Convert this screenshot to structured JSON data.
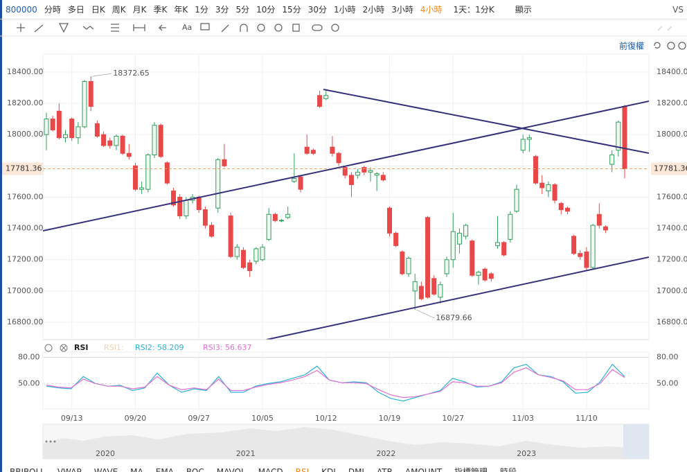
{
  "toolbar": {
    "symbol": "800000",
    "timeframes": [
      "分時",
      "多日",
      "日K",
      "周K",
      "月K",
      "季K",
      "年K",
      "1分",
      "3分",
      "5分",
      "10分",
      "15分",
      "30分",
      "1小時",
      "2小時",
      "3小時",
      "4小時"
    ],
    "active": "4小時",
    "period": "1天：1分K",
    "display": "顯示",
    "compare": "VS"
  },
  "toolbar2": {
    "text_tool": "Aa"
  },
  "adjust": "前復權",
  "chart_data": [
    {
      "type": "candlestick",
      "ylim": [
        16689,
        18515
      ],
      "yticks": [
        {
          "value": 16800,
          "label": "16800.00"
        },
        {
          "value": 17000,
          "label": "17000.00"
        },
        {
          "value": 17200,
          "label": "17200.00"
        },
        {
          "value": 17400,
          "label": "17400.00"
        },
        {
          "value": 17600,
          "label": "17600.00"
        },
        {
          "value": 17800,
          "label": "17800.00"
        },
        {
          "value": 18000,
          "label": "18000.00"
        },
        {
          "value": 18200,
          "label": "18200.00"
        },
        {
          "value": 18400,
          "label": "18400.00"
        }
      ],
      "categories": [
        null,
        null,
        null,
        null,
        "09/13",
        null,
        null,
        null,
        null,
        null,
        null,
        null,
        null,
        null,
        "09/20",
        null,
        null,
        null,
        null,
        null,
        null,
        null,
        null,
        null,
        "09/27",
        null,
        null,
        null,
        null,
        null,
        null,
        null,
        null,
        null,
        "10/05",
        null,
        null,
        null,
        null,
        null,
        null,
        null,
        null,
        null,
        "10/12",
        null,
        null,
        null,
        null,
        null,
        null,
        null,
        null,
        null,
        "10/19",
        null,
        null,
        null,
        null,
        null,
        null,
        null,
        null,
        null,
        "10/27",
        null,
        null,
        null,
        null,
        null,
        null,
        null,
        null,
        null,
        null,
        "11/03",
        null,
        null,
        null,
        null,
        null,
        null,
        null,
        null,
        null,
        "11/10",
        null,
        null,
        null,
        null,
        null,
        null
      ],
      "ohlc": [
        [
          18000,
          18140,
          17900,
          18100
        ],
        [
          18100,
          18120,
          18020,
          18030
        ],
        [
          18150,
          18200,
          17970,
          17980
        ],
        [
          17980,
          18030,
          17950,
          18000
        ],
        [
          18100,
          18110,
          17960,
          17980
        ],
        [
          17980,
          18080,
          17940,
          18050
        ],
        [
          18050,
          18350,
          18040,
          18340
        ],
        [
          18340,
          18372.65,
          18150,
          18180
        ],
        [
          18070,
          18090,
          17980,
          17990
        ],
        [
          18000,
          18020,
          17920,
          17930
        ],
        [
          17960,
          17980,
          17910,
          17930
        ],
        [
          17930,
          18000,
          17900,
          17990
        ],
        [
          17990,
          18000,
          17870,
          17880
        ],
        [
          17880,
          17940,
          17840,
          17860
        ],
        [
          17800,
          17820,
          17640,
          17650
        ],
        [
          17650,
          17700,
          17620,
          17660
        ],
        [
          17650,
          17880,
          17630,
          17870
        ],
        [
          17870,
          18080,
          17850,
          18060
        ],
        [
          18060,
          18070,
          17850,
          17860
        ],
        [
          17820,
          17830,
          17680,
          17690
        ],
        [
          17640,
          17660,
          17540,
          17550
        ],
        [
          17600,
          17620,
          17460,
          17480
        ],
        [
          17480,
          17600,
          17460,
          17580
        ],
        [
          17580,
          17620,
          17560,
          17600
        ],
        [
          17600,
          17610,
          17500,
          17520
        ],
        [
          17520,
          17540,
          17400,
          17420
        ],
        [
          17420,
          17440,
          17340,
          17350
        ],
        [
          17530,
          17850,
          17500,
          17840
        ],
        [
          17840,
          17940,
          17790,
          17800
        ],
        [
          17480,
          17500,
          17210,
          17220
        ],
        [
          17220,
          17300,
          17200,
          17280
        ],
        [
          17260,
          17280,
          17140,
          17150
        ],
        [
          17180,
          17200,
          17090,
          17130
        ],
        [
          17190,
          17280,
          17170,
          17270
        ],
        [
          17200,
          17300,
          17190,
          17280
        ],
        [
          17330,
          17530,
          17320,
          17490
        ],
        [
          17490,
          17500,
          17440,
          17450
        ],
        [
          17450,
          17460,
          17440,
          17452
        ],
        [
          17470,
          17540,
          17460,
          17490
        ],
        [
          17700,
          17880,
          17690,
          17720
        ],
        [
          17730,
          17740,
          17630,
          17650
        ],
        [
          17920,
          18000,
          17870,
          17880
        ],
        [
          17900,
          17910,
          17870,
          17880
        ],
        [
          18250,
          18280,
          18170,
          18180
        ],
        [
          18230,
          18290,
          18220,
          18250
        ],
        [
          17920,
          17990,
          17860,
          17880
        ],
        [
          17880,
          17890,
          17800,
          17820
        ],
        [
          17790,
          17800,
          17720,
          17740
        ],
        [
          17740,
          17760,
          17600,
          17680
        ],
        [
          17740,
          17780,
          17720,
          17760
        ],
        [
          17790,
          17800,
          17740,
          17760
        ],
        [
          17760,
          17790,
          17700,
          17770
        ],
        [
          17740,
          17760,
          17640,
          17750
        ],
        [
          17740,
          17760,
          17700,
          17710
        ],
        [
          17530,
          17540,
          17350,
          17370
        ],
        [
          17370,
          17380,
          17280,
          17290
        ],
        [
          17250,
          17260,
          17100,
          17110
        ],
        [
          17110,
          17220,
          17090,
          17210
        ],
        [
          17000,
          17110,
          16879.66,
          17060
        ],
        [
          17030,
          17060,
          16940,
          16950
        ],
        [
          17470,
          17480,
          16950,
          16960
        ],
        [
          17080,
          17100,
          16970,
          16980
        ],
        [
          16960,
          17060,
          16920,
          17040
        ],
        [
          17110,
          17220,
          17090,
          17200
        ],
        [
          17200,
          17500,
          17150,
          17380
        ],
        [
          17300,
          17400,
          17240,
          17370
        ],
        [
          17350,
          17430,
          17330,
          17420
        ],
        [
          17320,
          17330,
          17090,
          17100
        ],
        [
          17100,
          17130,
          17040,
          17120
        ],
        [
          17140,
          17150,
          17060,
          17070
        ],
        [
          17110,
          17120,
          17060,
          17080
        ],
        [
          17290,
          17480,
          17270,
          17310
        ],
        [
          17310,
          17320,
          17220,
          17230
        ],
        [
          17330,
          17510,
          17310,
          17490
        ],
        [
          17510,
          17680,
          17500,
          17650
        ],
        [
          17900,
          18000,
          17880,
          17970
        ],
        [
          17970,
          18000,
          17890,
          17980
        ],
        [
          17860,
          17870,
          17680,
          17690
        ],
        [
          17690,
          17740,
          17620,
          17660
        ],
        [
          17640,
          17700,
          17600,
          17680
        ],
        [
          17680,
          17690,
          17560,
          17580
        ],
        [
          17560,
          17570,
          17490,
          17520
        ],
        [
          17530,
          17540,
          17490,
          17510
        ],
        [
          17350,
          17360,
          17230,
          17240
        ],
        [
          17240,
          17260,
          17200,
          17220
        ],
        [
          17250,
          17280,
          17130,
          17150
        ],
        [
          17150,
          17430,
          17140,
          17420
        ],
        [
          17490,
          17560,
          17400,
          17420
        ],
        [
          17410,
          17420,
          17370,
          17390
        ],
        [
          17810,
          17900,
          17760,
          17870
        ],
        [
          17900,
          18090,
          17860,
          18080
        ],
        [
          18180,
          18190,
          17720,
          17781.36
        ]
      ],
      "up_color": "#2e9e5b",
      "down_color": "#e84848",
      "price_line_color": "#f0a060",
      "grid": true
    },
    {
      "type": "line",
      "indicator": "RSI",
      "ylim": [
        21,
        86
      ],
      "yticks": [
        {
          "value": 50,
          "label": "50.00"
        },
        {
          "value": 80,
          "label": "80.00"
        }
      ],
      "inactive_series": [
        {
          "name": "RSI1:",
          "color": "#f7cfa8"
        }
      ],
      "series": [
        {
          "name": "RSI2:",
          "color": "#2bb3d8",
          "current_value": 58.209,
          "values": [
            47,
            45,
            44,
            58,
            50,
            47,
            48,
            42,
            45,
            62,
            48,
            40,
            44,
            42,
            58,
            40,
            40,
            47,
            50,
            52,
            56,
            60,
            70,
            54,
            51,
            52,
            51,
            40,
            33,
            30,
            34,
            38,
            42,
            56,
            52,
            46,
            47,
            52,
            68,
            72,
            60,
            58,
            52,
            39,
            40,
            52,
            72,
            58
          ]
        },
        {
          "name": "RSI3:",
          "color": "#e070d0",
          "current_value": 56.637,
          "values": [
            48,
            46,
            45,
            55,
            50,
            47,
            47,
            44,
            46,
            58,
            48,
            43,
            45,
            43,
            55,
            42,
            42,
            46,
            49,
            51,
            54,
            58,
            65,
            54,
            51,
            51,
            50,
            43,
            37,
            34,
            35,
            38,
            41,
            52,
            51,
            47,
            47,
            51,
            63,
            68,
            60,
            57,
            53,
            43,
            43,
            50,
            66,
            57
          ]
        }
      ]
    }
  ],
  "navigator": {
    "years": [
      "2020",
      "2021",
      "2022",
      "2023"
    ]
  },
  "indicator_tabs": [
    "BBIBOLL",
    "VWAP",
    "WAVE",
    "MA",
    "EMA",
    "BOC",
    "MAVOL",
    "MACD",
    "RSI",
    "KDJ",
    "DMI",
    "ATR",
    "AMOUNT",
    "指標管理",
    "時段"
  ],
  "active_tab": "RSI"
}
